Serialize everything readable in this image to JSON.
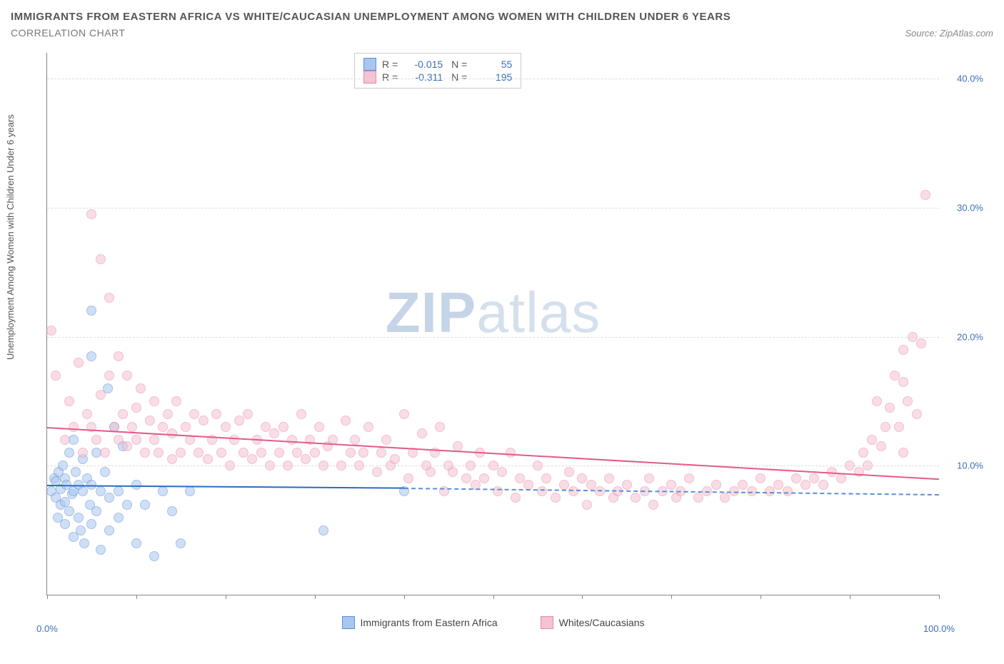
{
  "title": "IMMIGRANTS FROM EASTERN AFRICA VS WHITE/CAUCASIAN UNEMPLOYMENT AMONG WOMEN WITH CHILDREN UNDER 6 YEARS",
  "subtitle": "CORRELATION CHART",
  "source": "Source: ZipAtlas.com",
  "ylabel": "Unemployment Among Women with Children Under 6 years",
  "watermark_bold": "ZIP",
  "watermark_light": "atlas",
  "chart": {
    "type": "scatter",
    "xlim": [
      0,
      100
    ],
    "ylim": [
      0,
      42
    ],
    "xticks": [
      0,
      10,
      20,
      30,
      40,
      50,
      60,
      70,
      80,
      90,
      100
    ],
    "xtick_labels": {
      "0": "0.0%",
      "100": "100.0%"
    },
    "ygrid": [
      10,
      20,
      30,
      40
    ],
    "ytick_labels": {
      "10": "10.0%",
      "20": "20.0%",
      "30": "30.0%",
      "40": "40.0%"
    },
    "grid_color": "#dddddd",
    "axis_color": "#888888",
    "tick_label_color": "#3b6fb6",
    "background": "#ffffff",
    "marker_radius": 7,
    "marker_opacity": 0.55,
    "series": [
      {
        "name": "Immigrants from Eastern Africa",
        "fill": "#a8c6f0",
        "stroke": "#5a8fd6",
        "line_color": "#2d6bc4",
        "R": "-0.015",
        "N": "55",
        "trend": {
          "x1": 0,
          "y1": 8.5,
          "x2": 40,
          "y2": 8.3,
          "dash_to_x": 100,
          "dash_to_y": 7.8
        },
        "points": [
          [
            0.5,
            8
          ],
          [
            0.8,
            9
          ],
          [
            1,
            7.5
          ],
          [
            1,
            8.8
          ],
          [
            1.2,
            6
          ],
          [
            1.3,
            9.5
          ],
          [
            1.5,
            7
          ],
          [
            1.5,
            8.2
          ],
          [
            1.8,
            10
          ],
          [
            2,
            7.2
          ],
          [
            2,
            5.5
          ],
          [
            2,
            9
          ],
          [
            2.2,
            8.5
          ],
          [
            2.5,
            6.5
          ],
          [
            2.5,
            11
          ],
          [
            2.8,
            7.8
          ],
          [
            3,
            8
          ],
          [
            3,
            4.5
          ],
          [
            3,
            12
          ],
          [
            3.2,
            9.5
          ],
          [
            3.5,
            6
          ],
          [
            3.5,
            8.5
          ],
          [
            3.8,
            5
          ],
          [
            4,
            8
          ],
          [
            4,
            10.5
          ],
          [
            4.2,
            4
          ],
          [
            4.5,
            9
          ],
          [
            4.8,
            7
          ],
          [
            5,
            8.5
          ],
          [
            5,
            5.5
          ],
          [
            5,
            18.5
          ],
          [
            5,
            22
          ],
          [
            5.5,
            11
          ],
          [
            5.5,
            6.5
          ],
          [
            6,
            8
          ],
          [
            6,
            3.5
          ],
          [
            6.5,
            9.5
          ],
          [
            6.8,
            16
          ],
          [
            7,
            5
          ],
          [
            7,
            7.5
          ],
          [
            7.5,
            13
          ],
          [
            8,
            8
          ],
          [
            8,
            6
          ],
          [
            8.5,
            11.5
          ],
          [
            9,
            7
          ],
          [
            10,
            8.5
          ],
          [
            10,
            4
          ],
          [
            11,
            7
          ],
          [
            12,
            3
          ],
          [
            13,
            8
          ],
          [
            14,
            6.5
          ],
          [
            15,
            4
          ],
          [
            16,
            8
          ],
          [
            31,
            5
          ],
          [
            40,
            8
          ]
        ]
      },
      {
        "name": "Whites/Caucasians",
        "fill": "#f5c2d1",
        "stroke": "#e68aa8",
        "line_color": "#e45a87",
        "R": "-0.311",
        "N": "195",
        "trend": {
          "x1": 0,
          "y1": 13,
          "x2": 100,
          "y2": 9
        },
        "points": [
          [
            0.5,
            20.5
          ],
          [
            1,
            17
          ],
          [
            2,
            12
          ],
          [
            2.5,
            15
          ],
          [
            3,
            13
          ],
          [
            3.5,
            18
          ],
          [
            4,
            11
          ],
          [
            4.5,
            14
          ],
          [
            5,
            29.5
          ],
          [
            5,
            13
          ],
          [
            5.5,
            12
          ],
          [
            6,
            26
          ],
          [
            6,
            15.5
          ],
          [
            6.5,
            11
          ],
          [
            7,
            17
          ],
          [
            7,
            23
          ],
          [
            7.5,
            13
          ],
          [
            8,
            12
          ],
          [
            8,
            18.5
          ],
          [
            8.5,
            14
          ],
          [
            9,
            11.5
          ],
          [
            9,
            17
          ],
          [
            9.5,
            13
          ],
          [
            10,
            12
          ],
          [
            10,
            14.5
          ],
          [
            10.5,
            16
          ],
          [
            11,
            11
          ],
          [
            11.5,
            13.5
          ],
          [
            12,
            12
          ],
          [
            12,
            15
          ],
          [
            12.5,
            11
          ],
          [
            13,
            13
          ],
          [
            13.5,
            14
          ],
          [
            14,
            10.5
          ],
          [
            14,
            12.5
          ],
          [
            14.5,
            15
          ],
          [
            15,
            11
          ],
          [
            15.5,
            13
          ],
          [
            16,
            12
          ],
          [
            16.5,
            14
          ],
          [
            17,
            11
          ],
          [
            17.5,
            13.5
          ],
          [
            18,
            10.5
          ],
          [
            18.5,
            12
          ],
          [
            19,
            14
          ],
          [
            19.5,
            11
          ],
          [
            20,
            13
          ],
          [
            20.5,
            10
          ],
          [
            21,
            12
          ],
          [
            21.5,
            13.5
          ],
          [
            22,
            11
          ],
          [
            22.5,
            14
          ],
          [
            23,
            10.5
          ],
          [
            23.5,
            12
          ],
          [
            24,
            11
          ],
          [
            24.5,
            13
          ],
          [
            25,
            10
          ],
          [
            25.5,
            12.5
          ],
          [
            26,
            11
          ],
          [
            26.5,
            13
          ],
          [
            27,
            10
          ],
          [
            27.5,
            12
          ],
          [
            28,
            11
          ],
          [
            28.5,
            14
          ],
          [
            29,
            10.5
          ],
          [
            29.5,
            12
          ],
          [
            30,
            11
          ],
          [
            30.5,
            13
          ],
          [
            31,
            10
          ],
          [
            31.5,
            11.5
          ],
          [
            32,
            12
          ],
          [
            33,
            10
          ],
          [
            33.5,
            13.5
          ],
          [
            34,
            11
          ],
          [
            34.5,
            12
          ],
          [
            35,
            10
          ],
          [
            35.5,
            11
          ],
          [
            36,
            13
          ],
          [
            37,
            9.5
          ],
          [
            37.5,
            11
          ],
          [
            38,
            12
          ],
          [
            38.5,
            10
          ],
          [
            39,
            10.5
          ],
          [
            40,
            14
          ],
          [
            40.5,
            9
          ],
          [
            41,
            11
          ],
          [
            42,
            12.5
          ],
          [
            42.5,
            10
          ],
          [
            43,
            9.5
          ],
          [
            43.5,
            11
          ],
          [
            44,
            13
          ],
          [
            44.5,
            8
          ],
          [
            45,
            10
          ],
          [
            45.5,
            9.5
          ],
          [
            46,
            11.5
          ],
          [
            47,
            9
          ],
          [
            47.5,
            10
          ],
          [
            48,
            8.5
          ],
          [
            48.5,
            11
          ],
          [
            49,
            9
          ],
          [
            50,
            10
          ],
          [
            50.5,
            8
          ],
          [
            51,
            9.5
          ],
          [
            52,
            11
          ],
          [
            52.5,
            7.5
          ],
          [
            53,
            9
          ],
          [
            54,
            8.5
          ],
          [
            55,
            10
          ],
          [
            55.5,
            8
          ],
          [
            56,
            9
          ],
          [
            57,
            7.5
          ],
          [
            58,
            8.5
          ],
          [
            58.5,
            9.5
          ],
          [
            59,
            8
          ],
          [
            60,
            9
          ],
          [
            60.5,
            7
          ],
          [
            61,
            8.5
          ],
          [
            62,
            8
          ],
          [
            63,
            9
          ],
          [
            63.5,
            7.5
          ],
          [
            64,
            8
          ],
          [
            65,
            8.5
          ],
          [
            66,
            7.5
          ],
          [
            67,
            8
          ],
          [
            67.5,
            9
          ],
          [
            68,
            7
          ],
          [
            69,
            8
          ],
          [
            70,
            8.5
          ],
          [
            70.5,
            7.5
          ],
          [
            71,
            8
          ],
          [
            72,
            9
          ],
          [
            73,
            7.5
          ],
          [
            74,
            8
          ],
          [
            75,
            8.5
          ],
          [
            76,
            7.5
          ],
          [
            77,
            8
          ],
          [
            78,
            8.5
          ],
          [
            79,
            8
          ],
          [
            80,
            9
          ],
          [
            81,
            8
          ],
          [
            82,
            8.5
          ],
          [
            83,
            8
          ],
          [
            84,
            9
          ],
          [
            85,
            8.5
          ],
          [
            86,
            9
          ],
          [
            87,
            8.5
          ],
          [
            88,
            9.5
          ],
          [
            89,
            9
          ],
          [
            90,
            10
          ],
          [
            91,
            9.5
          ],
          [
            91.5,
            11
          ],
          [
            92,
            10
          ],
          [
            92.5,
            12
          ],
          [
            93,
            15
          ],
          [
            93.5,
            11.5
          ],
          [
            94,
            13
          ],
          [
            94.5,
            14.5
          ],
          [
            95,
            17
          ],
          [
            95.5,
            13
          ],
          [
            96,
            19
          ],
          [
            96,
            11
          ],
          [
            96.5,
            15
          ],
          [
            97,
            20
          ],
          [
            97.5,
            14
          ],
          [
            98,
            19.5
          ],
          [
            98.5,
            31
          ],
          [
            96,
            16.5
          ]
        ]
      }
    ]
  },
  "legend": {
    "bottom_items": [
      "Immigrants from Eastern Africa",
      "Whites/Caucasians"
    ]
  }
}
